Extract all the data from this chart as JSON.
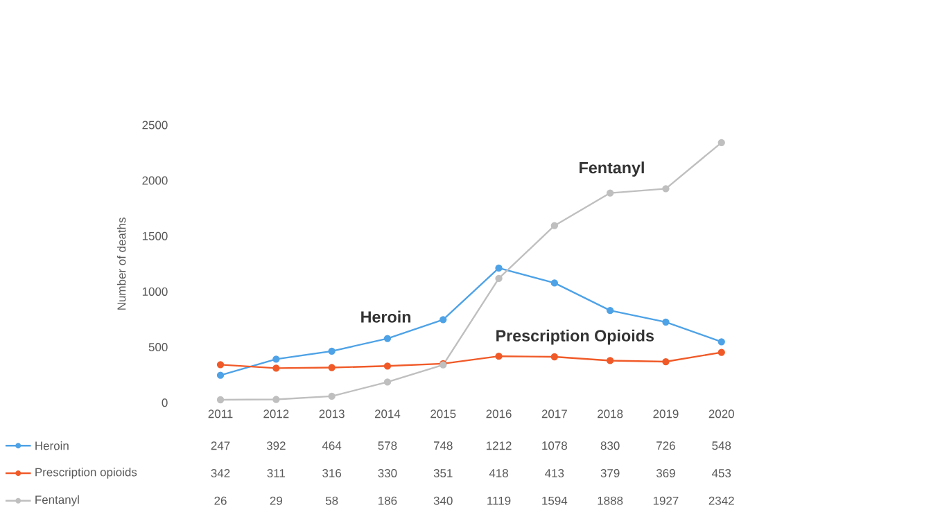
{
  "chart_data": {
    "type": "line",
    "ylabel": "Number of deaths",
    "categories": [
      "2011",
      "2012",
      "2013",
      "2014",
      "2015",
      "2016",
      "2017",
      "2018",
      "2019",
      "2020"
    ],
    "series": [
      {
        "name": "Heroin",
        "color": "#4ea2e6",
        "values": [
          247,
          392,
          464,
          578,
          748,
          1212,
          1078,
          830,
          726,
          548
        ]
      },
      {
        "name": "Prescription opioids",
        "color": "#f05a28",
        "values": [
          342,
          311,
          316,
          330,
          351,
          418,
          413,
          379,
          369,
          453
        ]
      },
      {
        "name": "Fentanyl",
        "color": "#bfbfbf",
        "values": [
          26,
          29,
          58,
          186,
          340,
          1119,
          1594,
          1888,
          1927,
          2342
        ]
      }
    ],
    "ylim": [
      0,
      2500
    ],
    "yticks": [
      0,
      500,
      1000,
      1500,
      2000,
      2500
    ],
    "annotations": [
      "Heroin",
      "Prescription Opioids",
      "Fentanyl"
    ],
    "data_labels": true,
    "legend": "bottom",
    "marker": "circle",
    "line_style": "solid",
    "grid": false
  }
}
